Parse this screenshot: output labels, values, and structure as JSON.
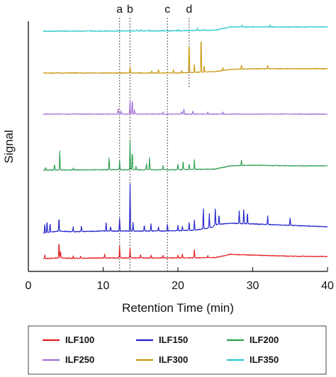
{
  "chart_data": {
    "type": "line",
    "title": "",
    "xlabel": "Retention Time (min)",
    "ylabel": "Signal",
    "xlim": [
      0,
      40
    ],
    "xticks": [
      0,
      10,
      20,
      30,
      40
    ],
    "grid": false,
    "legend_position": "bottom",
    "markers": [
      {
        "label": "a",
        "x": 12.2
      },
      {
        "label": "b",
        "x": 13.6
      },
      {
        "label": "c",
        "x": 18.6
      },
      {
        "label": "d",
        "x": 21.5
      }
    ],
    "series": [
      {
        "name": "ILF100",
        "color": "#e41a1c",
        "baseline": [
          [
            2,
            0
          ],
          [
            4,
            1
          ],
          [
            6,
            0.5
          ],
          [
            10,
            1
          ],
          [
            20,
            1
          ],
          [
            25,
            1.5
          ],
          [
            27,
            6
          ],
          [
            30,
            5
          ],
          [
            35,
            3.5
          ],
          [
            40,
            3
          ]
        ],
        "peaks": [
          [
            2.2,
            5
          ],
          [
            4.1,
            22
          ],
          [
            4.3,
            10
          ],
          [
            6,
            3
          ],
          [
            7,
            3
          ],
          [
            10.2,
            5
          ],
          [
            12.2,
            17
          ],
          [
            13.6,
            14
          ],
          [
            15,
            5
          ],
          [
            16.4,
            4
          ],
          [
            18,
            4
          ],
          [
            20,
            4
          ],
          [
            20.6,
            5
          ],
          [
            22.2,
            12
          ],
          [
            24,
            3
          ]
        ]
      },
      {
        "name": "ILF150",
        "color": "#1f1fcc",
        "baseline": [
          [
            2,
            -3
          ],
          [
            4,
            0
          ],
          [
            6,
            -1
          ],
          [
            10,
            0
          ],
          [
            13,
            0
          ],
          [
            18,
            0
          ],
          [
            20,
            0.5
          ],
          [
            22,
            1
          ],
          [
            23,
            2.5
          ],
          [
            24.5,
            5
          ],
          [
            25,
            9
          ],
          [
            27,
            11
          ],
          [
            30,
            10
          ],
          [
            35,
            8
          ],
          [
            40,
            6
          ]
        ],
        "peaks": [
          [
            2.2,
            12
          ],
          [
            2.5,
            16
          ],
          [
            2.9,
            13
          ],
          [
            4.1,
            18
          ],
          [
            6,
            7
          ],
          [
            7.1,
            8
          ],
          [
            10.4,
            12
          ],
          [
            11,
            6
          ],
          [
            12.2,
            18
          ],
          [
            13.6,
            66
          ],
          [
            14,
            12
          ],
          [
            15.5,
            8
          ],
          [
            16.4,
            10
          ],
          [
            17.4,
            6
          ],
          [
            18.6,
            9
          ],
          [
            20,
            8
          ],
          [
            20.6,
            6
          ],
          [
            21.5,
            12
          ],
          [
            22.2,
            14
          ],
          [
            23.4,
            28
          ],
          [
            24.2,
            20
          ],
          [
            25,
            22
          ],
          [
            25.5,
            14
          ],
          [
            28.2,
            18
          ],
          [
            28.8,
            20
          ],
          [
            29.3,
            16
          ],
          [
            32,
            12
          ],
          [
            35,
            10
          ]
        ]
      },
      {
        "name": "ILF200",
        "color": "#2e9e50",
        "baseline": [
          [
            2,
            0
          ],
          [
            10,
            0.5
          ],
          [
            15,
            0.5
          ],
          [
            20,
            0.5
          ],
          [
            25,
            1.5
          ],
          [
            27,
            6
          ],
          [
            30,
            7
          ],
          [
            35,
            6
          ],
          [
            40,
            6
          ]
        ],
        "peaks": [
          [
            2.3,
            4
          ],
          [
            3.5,
            8
          ],
          [
            4.2,
            27
          ],
          [
            6,
            3
          ],
          [
            10.8,
            17
          ],
          [
            12.2,
            13
          ],
          [
            13.6,
            42
          ],
          [
            13.9,
            25
          ],
          [
            14.4,
            5
          ],
          [
            15.8,
            9
          ],
          [
            16.2,
            17
          ],
          [
            18,
            6
          ],
          [
            20,
            8
          ],
          [
            20.7,
            12
          ],
          [
            21.5,
            8
          ],
          [
            22.2,
            14
          ],
          [
            28.5,
            8
          ]
        ]
      },
      {
        "name": "ILF250",
        "color": "#a66fd6",
        "baseline": [
          [
            2,
            0
          ],
          [
            20,
            0
          ],
          [
            40,
            0
          ]
        ],
        "peaks": [
          [
            12,
            8
          ],
          [
            12.4,
            4
          ],
          [
            13.6,
            20
          ],
          [
            13.9,
            20
          ],
          [
            14.2,
            6
          ],
          [
            18,
            3
          ],
          [
            20.5,
            4
          ],
          [
            20.8,
            7
          ],
          [
            22,
            4
          ],
          [
            24,
            3
          ],
          [
            26,
            3
          ]
        ]
      },
      {
        "name": "ILF300",
        "color": "#c8960a",
        "baseline": [
          [
            2,
            0
          ],
          [
            20,
            0
          ],
          [
            25,
            2
          ],
          [
            27,
            5
          ],
          [
            30,
            6
          ],
          [
            35,
            6
          ],
          [
            40,
            6
          ]
        ],
        "peaks": [
          [
            13.6,
            9
          ],
          [
            16.5,
            3
          ],
          [
            17.4,
            5
          ],
          [
            19.4,
            4
          ],
          [
            20.5,
            3
          ],
          [
            21.5,
            42
          ],
          [
            22.2,
            11
          ],
          [
            23.1,
            50
          ],
          [
            23.5,
            9
          ],
          [
            26,
            4
          ],
          [
            28.5,
            6
          ],
          [
            32,
            5
          ]
        ]
      },
      {
        "name": "ILF350",
        "color": "#25c8c8",
        "baseline": [
          [
            2,
            0
          ],
          [
            20,
            0.5
          ],
          [
            25,
            1.5
          ],
          [
            27,
            6
          ],
          [
            30,
            6
          ],
          [
            35,
            6
          ],
          [
            40,
            6
          ]
        ],
        "peaks": [
          [
            14.5,
            1.5
          ],
          [
            15,
            2
          ],
          [
            16.2,
            2
          ],
          [
            18,
            1
          ],
          [
            20,
            2
          ],
          [
            22.6,
            3
          ],
          [
            23.5,
            1.5
          ],
          [
            28.6,
            3
          ],
          [
            32.3,
            3
          ]
        ]
      }
    ]
  }
}
